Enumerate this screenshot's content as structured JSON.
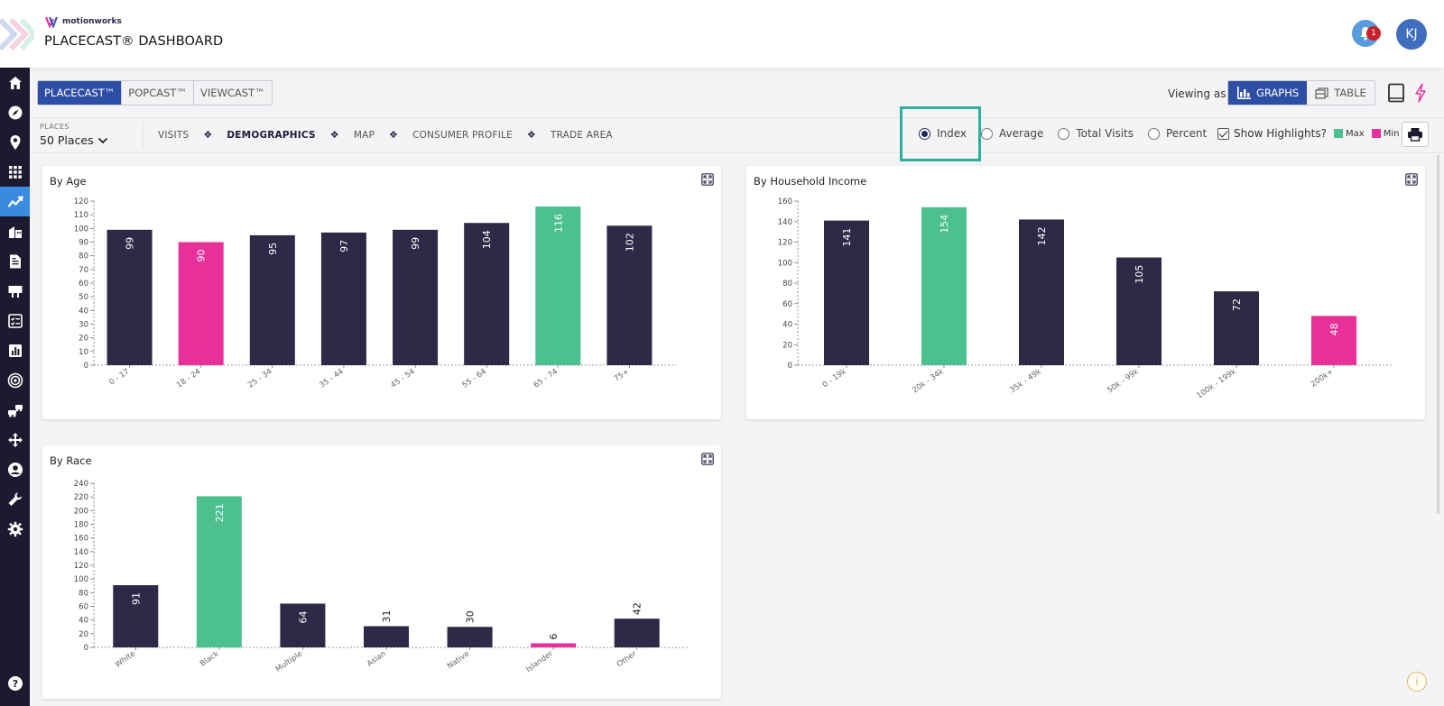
{
  "header": {
    "brand": "motionworks",
    "title": "PLACECAST® DASHBOARD",
    "notification_count": "1",
    "user_initials": "KJ"
  },
  "sidebar": {
    "items": [
      {
        "icon": "home-icon"
      },
      {
        "icon": "compass-icon"
      },
      {
        "icon": "location-pin-icon"
      },
      {
        "icon": "grid-icon"
      },
      {
        "icon": "trend-chart-icon",
        "active": true
      },
      {
        "icon": "buildings-icon"
      },
      {
        "icon": "report-icon"
      },
      {
        "icon": "billboard-icon"
      },
      {
        "icon": "checklist-icon"
      },
      {
        "icon": "bar-chart-icon"
      },
      {
        "icon": "target-icon"
      },
      {
        "icon": "vehicles-icon"
      },
      {
        "icon": "move-icon"
      },
      {
        "icon": "user-icon"
      },
      {
        "icon": "wrench-icon"
      },
      {
        "icon": "gear-icon"
      },
      {
        "icon": "help-icon"
      }
    ]
  },
  "product_tabs": [
    "PLACECAST™",
    "POPCAST™",
    "VIEWCAST™"
  ],
  "viewing": {
    "label": "Viewing as",
    "graphs": "GRAPHS",
    "table": "TABLE"
  },
  "places": {
    "label": "PLACES",
    "value": "50 Places"
  },
  "sections": [
    "VISITS",
    "DEMOGRAPHICS",
    "MAP",
    "CONSUMER PROFILE",
    "TRADE AREA"
  ],
  "metrics": {
    "options": [
      "Index",
      "Average",
      "Total Visits",
      "Percent"
    ],
    "selected": "Index"
  },
  "highlights": {
    "label": "Show Highlights?",
    "max_label": "Max",
    "min_label": "Min",
    "max_color": "#4cc08f",
    "min_color": "#e8309a",
    "default_color": "#2d2947"
  },
  "chart_data": [
    {
      "type": "bar",
      "title": "By Age",
      "categories": [
        "0 - 17",
        "18 - 24",
        "25 - 34",
        "35 - 44",
        "45 - 54",
        "55 - 64",
        "65 - 74",
        "75+"
      ],
      "values": [
        99,
        90,
        95,
        97,
        99,
        104,
        116,
        102
      ],
      "ylim": [
        0,
        120
      ],
      "yticks": [
        0,
        10,
        20,
        30,
        40,
        50,
        60,
        70,
        80,
        90,
        100,
        110,
        120
      ],
      "max_index": 6,
      "min_index": 1
    },
    {
      "type": "bar",
      "title": "By Household Income",
      "categories": [
        "0 - 19k",
        "20k - 34k",
        "35k - 49k",
        "50k - 99k",
        "100k - 199k",
        "200k+"
      ],
      "values": [
        141,
        154,
        142,
        105,
        72,
        48
      ],
      "ylim": [
        0,
        160
      ],
      "yticks": [
        0,
        20,
        40,
        60,
        80,
        100,
        120,
        140,
        160
      ],
      "max_index": 1,
      "min_index": 5
    },
    {
      "type": "bar",
      "title": "By Race",
      "categories": [
        "White",
        "Black",
        "Multiple",
        "Asian",
        "Native",
        "Islander",
        "Other"
      ],
      "values": [
        91,
        221,
        64,
        31,
        30,
        6,
        42
      ],
      "ylim": [
        0,
        240
      ],
      "yticks": [
        0,
        20,
        40,
        60,
        80,
        100,
        120,
        140,
        160,
        180,
        200,
        220,
        240
      ],
      "max_index": 1,
      "min_index": 5
    }
  ]
}
